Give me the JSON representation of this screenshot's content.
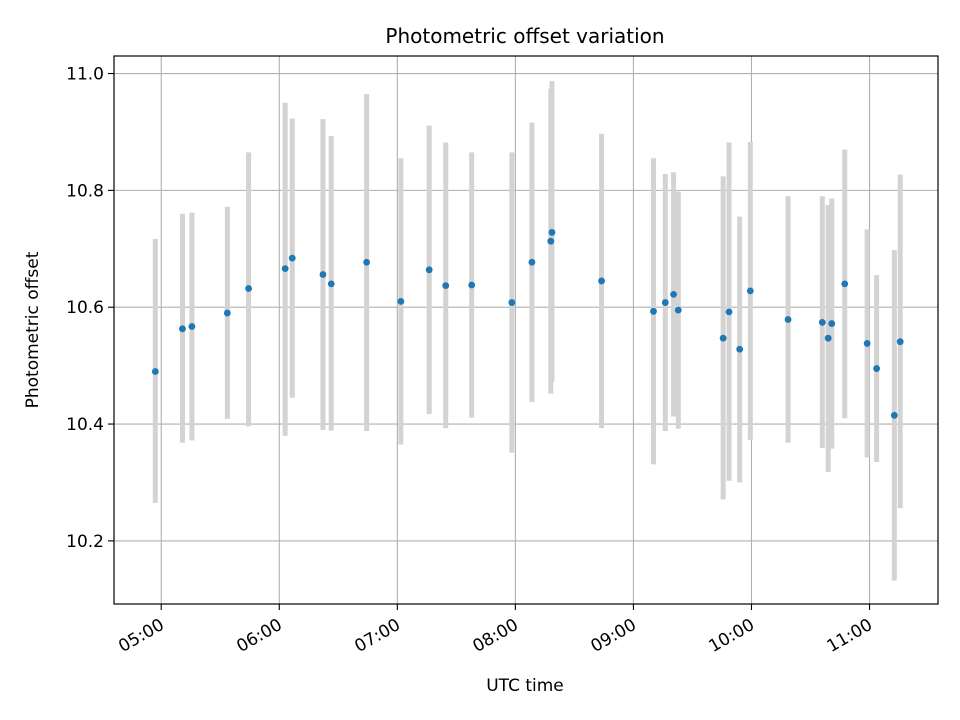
{
  "chart_data": {
    "type": "scatter",
    "title": "Photometric offset variation",
    "xlabel": "UTC time",
    "ylabel": "Photometric offset",
    "x_unit": "UTC hour",
    "xlim": [
      4.6,
      11.58
    ],
    "ylim": [
      10.092,
      11.03
    ],
    "x_ticks": [
      5,
      6,
      7,
      8,
      9,
      10,
      11
    ],
    "x_tick_labels": [
      "05:00",
      "06:00",
      "07:00",
      "08:00",
      "09:00",
      "10:00",
      "11:00"
    ],
    "y_ticks": [
      10.2,
      10.4,
      10.6,
      10.8,
      11.0
    ],
    "y_tick_labels": [
      "10.2",
      "10.4",
      "10.6",
      "10.8",
      "11.0"
    ],
    "grid": true,
    "legend": "none",
    "marker_color": "#1f77b4",
    "errorbar_color": "#d3d3d3",
    "points": [
      {
        "x": 4.95,
        "y": 10.49,
        "lo": 10.265,
        "hi": 10.717
      },
      {
        "x": 5.18,
        "y": 10.563,
        "lo": 10.368,
        "hi": 10.76
      },
      {
        "x": 5.26,
        "y": 10.567,
        "lo": 10.372,
        "hi": 10.762
      },
      {
        "x": 5.56,
        "y": 10.59,
        "lo": 10.409,
        "hi": 10.772
      },
      {
        "x": 5.74,
        "y": 10.632,
        "lo": 10.396,
        "hi": 10.865
      },
      {
        "x": 6.05,
        "y": 10.666,
        "lo": 10.38,
        "hi": 10.95
      },
      {
        "x": 6.11,
        "y": 10.684,
        "lo": 10.445,
        "hi": 10.923
      },
      {
        "x": 6.37,
        "y": 10.656,
        "lo": 10.39,
        "hi": 10.922
      },
      {
        "x": 6.44,
        "y": 10.64,
        "lo": 10.389,
        "hi": 10.893
      },
      {
        "x": 6.74,
        "y": 10.677,
        "lo": 10.388,
        "hi": 10.965
      },
      {
        "x": 7.03,
        "y": 10.61,
        "lo": 10.365,
        "hi": 10.855
      },
      {
        "x": 7.27,
        "y": 10.664,
        "lo": 10.417,
        "hi": 10.911
      },
      {
        "x": 7.41,
        "y": 10.637,
        "lo": 10.393,
        "hi": 10.882
      },
      {
        "x": 7.63,
        "y": 10.638,
        "lo": 10.411,
        "hi": 10.865
      },
      {
        "x": 7.97,
        "y": 10.608,
        "lo": 10.351,
        "hi": 10.865
      },
      {
        "x": 8.14,
        "y": 10.677,
        "lo": 10.438,
        "hi": 10.916
      },
      {
        "x": 8.3,
        "y": 10.713,
        "lo": 10.452,
        "hi": 10.974
      },
      {
        "x": 8.31,
        "y": 10.728,
        "lo": 10.472,
        "hi": 10.987
      },
      {
        "x": 8.73,
        "y": 10.645,
        "lo": 10.393,
        "hi": 10.897
      },
      {
        "x": 9.17,
        "y": 10.593,
        "lo": 10.331,
        "hi": 10.855
      },
      {
        "x": 9.27,
        "y": 10.608,
        "lo": 10.388,
        "hi": 10.828
      },
      {
        "x": 9.34,
        "y": 10.622,
        "lo": 10.413,
        "hi": 10.831
      },
      {
        "x": 9.38,
        "y": 10.595,
        "lo": 10.392,
        "hi": 10.798
      },
      {
        "x": 9.76,
        "y": 10.547,
        "lo": 10.271,
        "hi": 10.824
      },
      {
        "x": 9.81,
        "y": 10.592,
        "lo": 10.303,
        "hi": 10.882
      },
      {
        "x": 9.9,
        "y": 10.528,
        "lo": 10.3,
        "hi": 10.755
      },
      {
        "x": 9.99,
        "y": 10.628,
        "lo": 10.373,
        "hi": 10.883
      },
      {
        "x": 10.31,
        "y": 10.579,
        "lo": 10.368,
        "hi": 10.79
      },
      {
        "x": 10.6,
        "y": 10.574,
        "lo": 10.359,
        "hi": 10.79
      },
      {
        "x": 10.65,
        "y": 10.547,
        "lo": 10.318,
        "hi": 10.775
      },
      {
        "x": 10.68,
        "y": 10.572,
        "lo": 10.358,
        "hi": 10.786
      },
      {
        "x": 10.79,
        "y": 10.64,
        "lo": 10.41,
        "hi": 10.87
      },
      {
        "x": 10.98,
        "y": 10.538,
        "lo": 10.343,
        "hi": 10.733
      },
      {
        "x": 11.06,
        "y": 10.495,
        "lo": 10.335,
        "hi": 10.655
      },
      {
        "x": 11.21,
        "y": 10.415,
        "lo": 10.132,
        "hi": 10.698
      },
      {
        "x": 11.26,
        "y": 10.541,
        "lo": 10.256,
        "hi": 10.827
      }
    ]
  }
}
